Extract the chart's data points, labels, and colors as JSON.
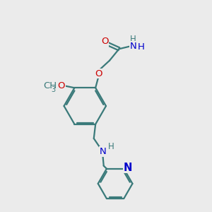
{
  "bg_color": "#ebebeb",
  "bond_color": "#3a7a7a",
  "O_color": "#cc0000",
  "N_color": "#0000cc",
  "lw": 1.6,
  "fs": 9.5,
  "fs_sub": 7.0,
  "figsize": [
    3.0,
    3.0
  ],
  "dpi": 100,
  "xlim": [
    0,
    10
  ],
  "ylim": [
    0,
    10
  ]
}
